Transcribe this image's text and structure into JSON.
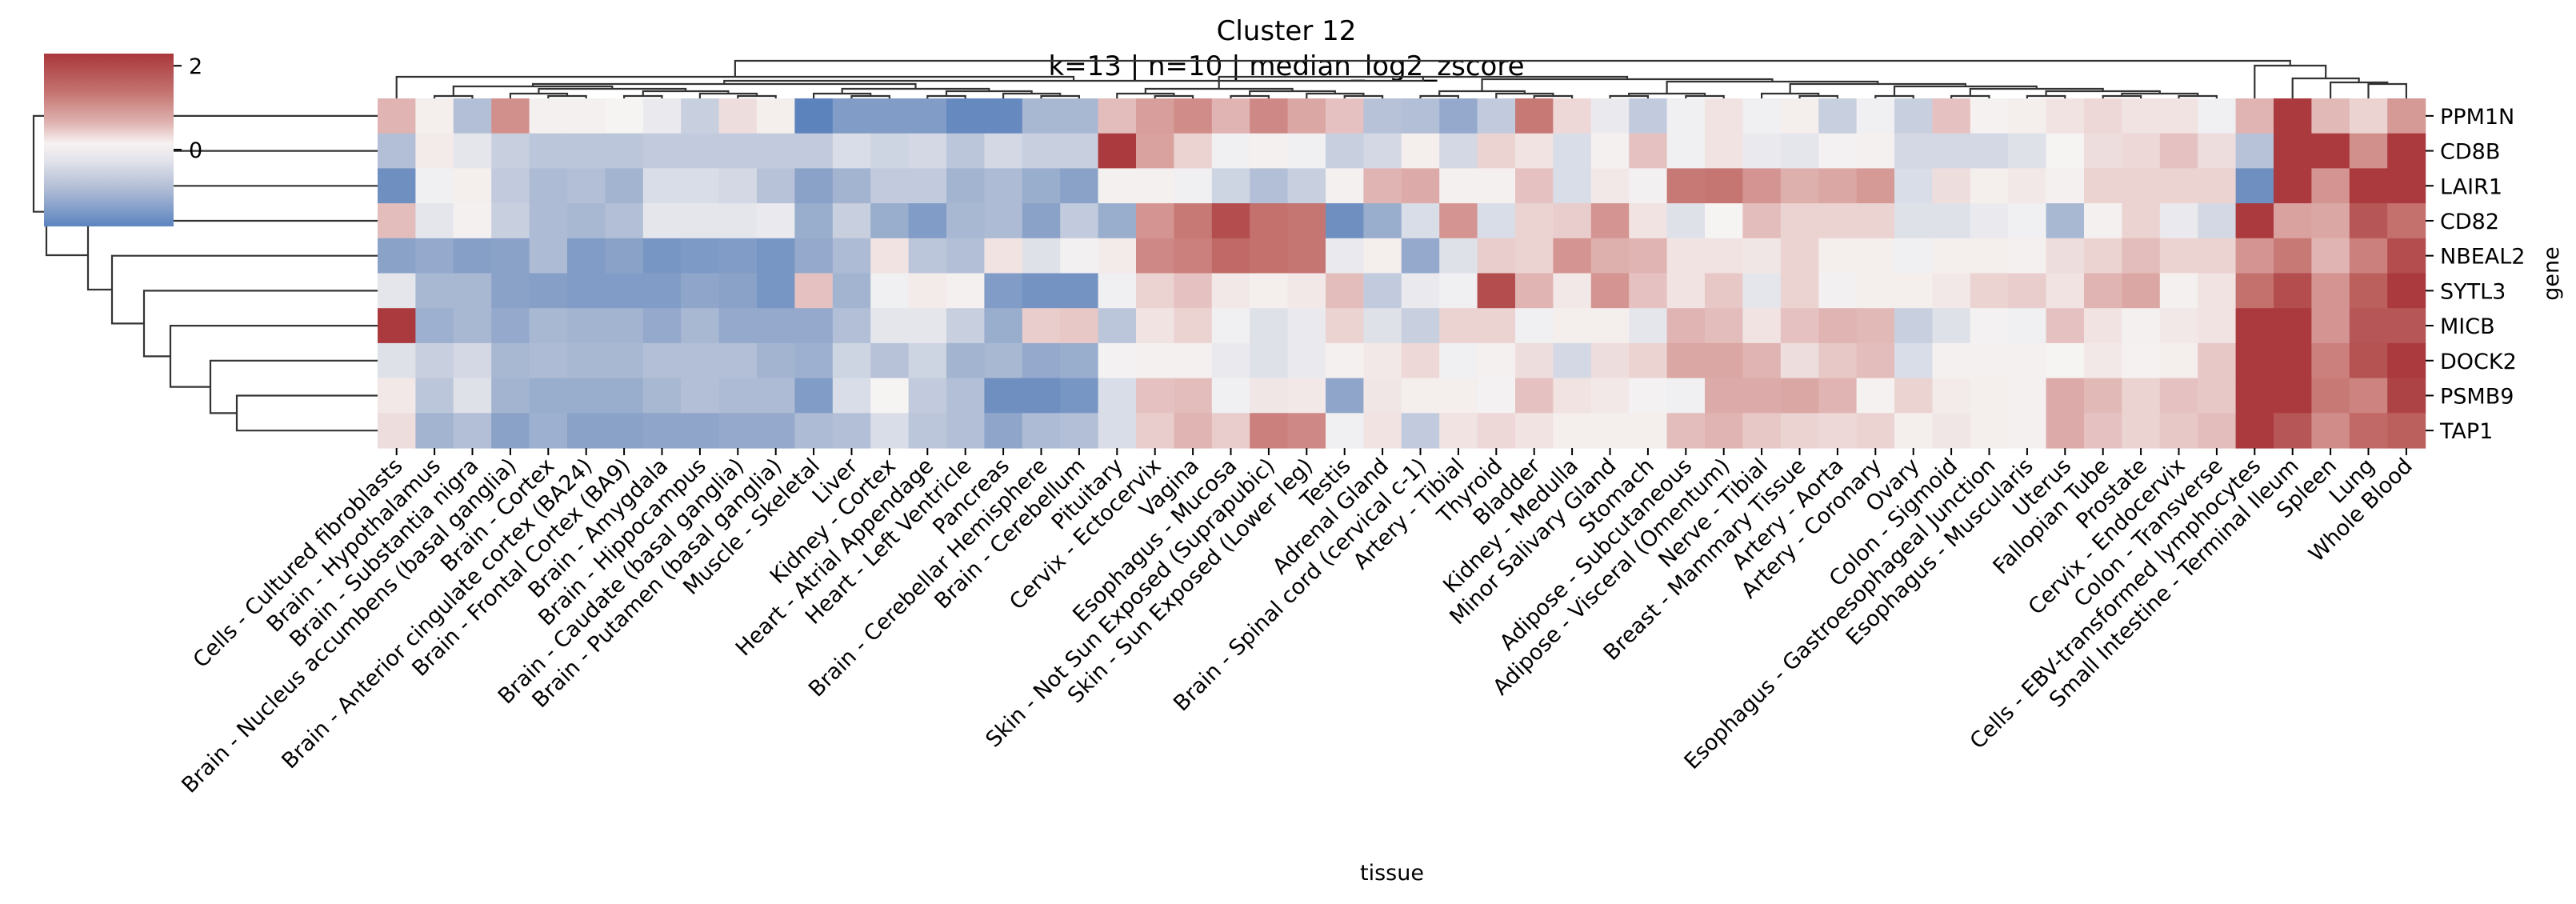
{
  "chart_data": {
    "type": "heatmap",
    "title": "Cluster 12",
    "subtitle": "k=13 | n=10 | median_log2_zscore",
    "xlabel": "tissue",
    "ylabel": "gene",
    "x_categories": [
      "Cells - Cultured fibroblasts",
      "Brain - Hypothalamus",
      "Brain - Substantia nigra",
      "Brain - Nucleus accumbens (basal ganglia)",
      "Brain - Cortex",
      "Brain - Anterior cingulate cortex (BA24)",
      "Brain - Frontal Cortex (BA9)",
      "Brain - Amygdala",
      "Brain - Hippocampus",
      "Brain - Caudate (basal ganglia)",
      "Brain - Putamen (basal ganglia)",
      "Muscle - Skeletal",
      "Liver",
      "Kidney - Cortex",
      "Heart - Atrial Appendage",
      "Heart - Left Ventricle",
      "Pancreas",
      "Brain - Cerebellar Hemisphere",
      "Brain - Cerebellum",
      "Pituitary",
      "Cervix - Ectocervix",
      "Vagina",
      "Esophagus - Mucosa",
      "Skin - Not Sun Exposed (Suprapubic)",
      "Skin - Sun Exposed (Lower leg)",
      "Testis",
      "Adrenal Gland",
      "Brain - Spinal cord (cervical c-1)",
      "Artery - Tibial",
      "Thyroid",
      "Bladder",
      "Kidney - Medulla",
      "Minor Salivary Gland",
      "Stomach",
      "Adipose - Subcutaneous",
      "Adipose - Visceral (Omentum)",
      "Nerve - Tibial",
      "Breast - Mammary Tissue",
      "Artery - Aorta",
      "Artery - Coronary",
      "Ovary",
      "Colon - Sigmoid",
      "Esophagus - Gastroesophageal Junction",
      "Esophagus - Muscularis",
      "Uterus",
      "Fallopian Tube",
      "Prostate",
      "Cervix - Endocervix",
      "Colon - Transverse",
      "Cells - EBV-transformed lymphocytes",
      "Small Intestine - Terminal Ileum",
      "Spleen",
      "Lung",
      "Whole Blood"
    ],
    "y_categories": [
      "PPM1N",
      "CD8B",
      "LAIR1",
      "CD82",
      "NBEAL2",
      "SYTL3",
      "MICB",
      "DOCK2",
      "PSMB9",
      "TAP1"
    ],
    "values": [
      [
        0.6,
        0.05,
        -0.6,
        1.0,
        0.03,
        0.03,
        0.0,
        -0.1,
        -0.4,
        0.2,
        0.05,
        -1.5,
        -1.1,
        -1.1,
        -1.1,
        -1.4,
        -1.4,
        -0.7,
        -0.7,
        0.5,
        0.85,
        1.05,
        0.6,
        1.1,
        0.75,
        0.45,
        -0.55,
        -0.6,
        -0.9,
        -0.45,
        1.3,
        0.25,
        -0.1,
        -0.45,
        -0.05,
        0.15,
        -0.05,
        0.05,
        -0.4,
        -0.05,
        -0.4,
        0.45,
        0.02,
        0.05,
        0.15,
        0.25,
        0.15,
        0.15,
        -0.05,
        0.6,
        2.2,
        0.55,
        0.3,
        0.9
      ],
      [
        -0.6,
        0.08,
        -0.15,
        -0.4,
        -0.5,
        -0.5,
        -0.5,
        -0.45,
        -0.45,
        -0.45,
        -0.45,
        -0.45,
        -0.25,
        -0.35,
        -0.3,
        -0.5,
        -0.3,
        -0.4,
        -0.4,
        2.2,
        0.8,
        0.3,
        -0.05,
        0.03,
        -0.05,
        -0.4,
        -0.3,
        0.05,
        -0.3,
        0.3,
        0.15,
        -0.25,
        0.03,
        0.45,
        -0.05,
        0.15,
        -0.1,
        -0.15,
        -0.02,
        0.03,
        -0.3,
        -0.3,
        -0.3,
        -0.2,
        0.0,
        0.2,
        0.25,
        0.45,
        0.2,
        -0.55,
        2.2,
        2.2,
        1.0,
        2.2
      ],
      [
        -1.3,
        -0.05,
        0.05,
        -0.45,
        -0.65,
        -0.6,
        -0.75,
        -0.25,
        -0.25,
        -0.3,
        -0.55,
        -1.0,
        -0.75,
        -0.45,
        -0.45,
        -0.75,
        -0.65,
        -0.85,
        -1.0,
        0.03,
        0.03,
        -0.05,
        -0.35,
        -0.6,
        -0.4,
        0.03,
        0.6,
        0.7,
        0.03,
        0.03,
        0.45,
        -0.25,
        0.1,
        -0.03,
        1.3,
        1.35,
        0.95,
        0.65,
        0.75,
        0.9,
        -0.25,
        0.2,
        0.05,
        0.1,
        0.03,
        0.3,
        0.3,
        0.3,
        0.3,
        -1.3,
        2.2,
        0.95,
        2.2,
        2.2
      ],
      [
        0.5,
        -0.15,
        0.03,
        -0.4,
        -0.65,
        -0.7,
        -0.6,
        -0.15,
        -0.15,
        -0.15,
        -0.1,
        -0.85,
        -0.4,
        -0.85,
        -1.1,
        -0.7,
        -0.65,
        -1.0,
        -0.45,
        -0.85,
        0.95,
        1.3,
        1.8,
        1.4,
        1.35,
        -1.3,
        -0.85,
        -0.25,
        0.95,
        -0.25,
        0.3,
        0.35,
        0.95,
        0.15,
        -0.2,
        0.0,
        0.5,
        0.3,
        0.3,
        0.3,
        -0.2,
        -0.2,
        -0.1,
        -0.05,
        -0.7,
        0.03,
        0.3,
        -0.1,
        -0.3,
        2.2,
        0.8,
        0.75,
        1.7,
        1.4
      ],
      [
        -1.0,
        -0.9,
        -1.05,
        -1.0,
        -0.65,
        -1.1,
        -1.0,
        -1.2,
        -1.15,
        -1.1,
        -1.2,
        -0.9,
        -0.65,
        0.15,
        -0.5,
        -0.6,
        0.15,
        -0.2,
        -0.03,
        0.08,
        1.1,
        1.2,
        1.5,
        1.4,
        1.35,
        -0.1,
        0.05,
        -0.9,
        -0.2,
        0.35,
        0.3,
        0.95,
        0.65,
        0.6,
        0.15,
        0.15,
        0.12,
        0.3,
        0.05,
        0.05,
        -0.05,
        0.05,
        0.05,
        0.03,
        0.2,
        0.3,
        0.5,
        0.3,
        0.3,
        0.95,
        1.3,
        0.6,
        1.2,
        1.8
      ],
      [
        -0.15,
        -0.7,
        -0.7,
        -1.0,
        -1.05,
        -1.1,
        -1.1,
        -1.1,
        -0.95,
        -1.0,
        -1.2,
        0.45,
        -0.75,
        -0.05,
        0.08,
        0.03,
        -1.1,
        -1.25,
        -1.25,
        -0.05,
        0.3,
        0.45,
        0.1,
        0.05,
        0.1,
        0.5,
        -0.45,
        -0.1,
        -0.05,
        1.8,
        0.6,
        0.1,
        0.95,
        0.45,
        0.15,
        0.4,
        -0.15,
        0.3,
        -0.03,
        0.05,
        0.05,
        0.1,
        0.3,
        0.35,
        0.15,
        0.6,
        0.75,
        0.03,
        0.15,
        1.4,
        1.8,
        0.95,
        1.6,
        2.1
      ],
      [
        2.0,
        -0.8,
        -0.7,
        -0.9,
        -0.7,
        -0.75,
        -0.75,
        -0.9,
        -0.7,
        -0.9,
        -0.9,
        -0.9,
        -0.6,
        -0.15,
        -0.15,
        -0.4,
        -0.85,
        0.35,
        0.4,
        -0.5,
        0.15,
        0.3,
        -0.05,
        -0.2,
        -0.1,
        0.3,
        -0.2,
        -0.4,
        0.3,
        0.3,
        -0.05,
        0.05,
        0.05,
        -0.15,
        0.6,
        0.5,
        0.15,
        0.45,
        0.6,
        0.55,
        -0.4,
        -0.2,
        -0.02,
        -0.05,
        0.45,
        0.15,
        0.03,
        0.1,
        0.15,
        2.2,
        2.2,
        0.95,
        1.7,
        1.7
      ],
      [
        -0.2,
        -0.4,
        -0.3,
        -0.7,
        -0.65,
        -0.7,
        -0.7,
        -0.6,
        -0.6,
        -0.6,
        -0.75,
        -0.8,
        -0.35,
        -0.55,
        -0.35,
        -0.75,
        -0.7,
        -0.9,
        -0.85,
        -0.02,
        0.03,
        0.03,
        -0.1,
        -0.2,
        -0.1,
        0.03,
        0.1,
        0.25,
        -0.05,
        0.03,
        0.2,
        -0.3,
        0.2,
        0.3,
        0.75,
        0.75,
        0.6,
        0.2,
        0.4,
        0.5,
        -0.25,
        0.03,
        0.03,
        0.03,
        0.0,
        0.1,
        0.02,
        0.05,
        0.4,
        2.2,
        2.2,
        1.2,
        1.75,
        2.1
      ],
      [
        0.1,
        -0.5,
        -0.2,
        -0.75,
        -0.85,
        -0.85,
        -0.85,
        -0.7,
        -0.6,
        -0.65,
        -0.65,
        -1.1,
        -0.25,
        0.0,
        -0.45,
        -0.6,
        -1.3,
        -1.3,
        -1.2,
        -0.25,
        0.45,
        0.5,
        -0.05,
        0.12,
        0.1,
        -0.95,
        0.12,
        0.05,
        0.05,
        -0.02,
        0.45,
        0.15,
        0.1,
        -0.02,
        -0.05,
        0.7,
        0.7,
        0.75,
        0.6,
        0.02,
        0.3,
        0.08,
        0.05,
        0.03,
        0.7,
        0.55,
        0.3,
        0.45,
        0.4,
        2.2,
        2.2,
        1.3,
        1.15,
        1.9
      ],
      [
        0.2,
        -0.75,
        -0.6,
        -1.0,
        -0.8,
        -1.0,
        -1.0,
        -0.95,
        -0.95,
        -0.9,
        -0.9,
        -0.65,
        -0.6,
        -0.25,
        -0.5,
        -0.6,
        -0.95,
        -0.65,
        -0.6,
        -0.25,
        0.35,
        0.6,
        0.35,
        1.2,
        1.1,
        -0.05,
        0.15,
        -0.45,
        0.15,
        0.25,
        0.15,
        0.05,
        0.05,
        0.05,
        0.5,
        0.6,
        0.4,
        0.3,
        0.25,
        0.3,
        0.05,
        0.12,
        0.05,
        0.03,
        0.7,
        0.45,
        0.3,
        0.4,
        0.5,
        2.2,
        1.7,
        1.05,
        1.5,
        1.6
      ]
    ],
    "colorbar": {
      "ticks": [
        "2",
        "0"
      ],
      "range": [
        -1.83,
        2.29
      ],
      "colormap": "vlag"
    },
    "grid": false,
    "row_dendrogram": "left",
    "col_dendrogram": "top"
  }
}
